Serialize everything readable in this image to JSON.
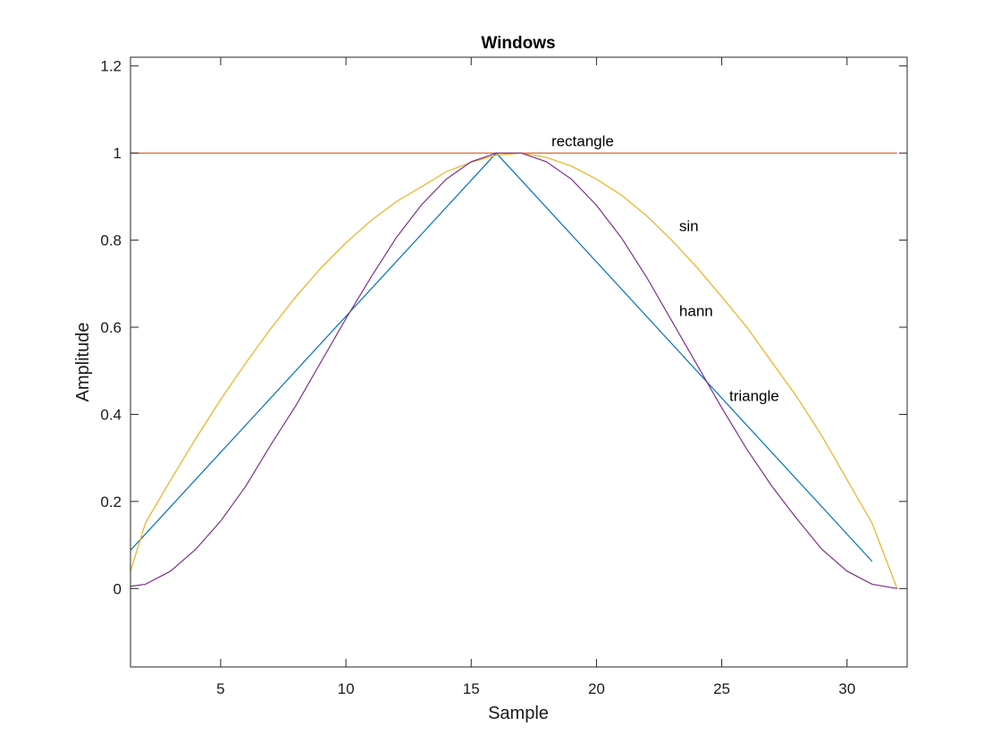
{
  "chart_data": {
    "type": "line",
    "title": "Windows",
    "xlabel": "Sample",
    "ylabel": "Amplitude",
    "xlim": [
      1.4,
      32.4
    ],
    "ylim": [
      -0.18,
      1.22
    ],
    "xticks": [
      5,
      10,
      15,
      20,
      25,
      30
    ],
    "yticks": [
      0,
      0.2,
      0.4,
      0.6,
      0.8,
      1,
      1.2
    ],
    "xtick_labels": [
      "5",
      "10",
      "15",
      "20",
      "25",
      "30"
    ],
    "ytick_labels": [
      "0",
      "0.2",
      "0.4",
      "0.6",
      "0.8",
      "1",
      "1.2"
    ],
    "grid": false,
    "box": true,
    "series": [
      {
        "name": "triangle",
        "color": "#0072BD",
        "x": [
          1.4,
          16,
          31
        ],
        "y": [
          0.088,
          1.0,
          0.0625
        ]
      },
      {
        "name": "rectangle",
        "color": "#D95319",
        "x": [
          1.4,
          32
        ],
        "y": [
          1.0,
          1.0
        ]
      },
      {
        "name": "sin",
        "color": "#EDB120",
        "x": [
          1.4,
          2,
          3,
          4,
          5,
          6,
          7,
          8,
          9,
          10,
          11,
          12,
          13,
          14,
          15,
          16,
          17,
          18,
          19,
          20,
          21,
          22,
          23,
          24,
          25,
          26,
          27,
          28,
          29,
          30,
          31,
          32
        ],
        "y": [
          0.04,
          0.151,
          0.249,
          0.344,
          0.434,
          0.518,
          0.597,
          0.67,
          0.736,
          0.794,
          0.845,
          0.888,
          0.922,
          0.957,
          0.979,
          0.995,
          1.0,
          0.99,
          0.97,
          0.94,
          0.903,
          0.856,
          0.8,
          0.738,
          0.67,
          0.6,
          0.52,
          0.44,
          0.35,
          0.25,
          0.15,
          0.0
        ]
      },
      {
        "name": "hann",
        "color": "#7E2F8E",
        "x": [
          1.4,
          2,
          3,
          4,
          5,
          6,
          7,
          8,
          9,
          10,
          11,
          12,
          13,
          14,
          15,
          16,
          17,
          18,
          19,
          20,
          21,
          22,
          23,
          24,
          25,
          26,
          27,
          28,
          29,
          30,
          31,
          32
        ],
        "y": [
          0.005,
          0.01,
          0.04,
          0.09,
          0.155,
          0.235,
          0.33,
          0.42,
          0.52,
          0.62,
          0.715,
          0.805,
          0.88,
          0.94,
          0.98,
          1.0,
          1.0,
          0.98,
          0.94,
          0.88,
          0.805,
          0.715,
          0.615,
          0.515,
          0.415,
          0.32,
          0.235,
          0.16,
          0.09,
          0.04,
          0.01,
          0.0
        ]
      }
    ],
    "annotations": [
      {
        "text": "rectangle",
        "x": 18.2,
        "y": 1.025
      },
      {
        "text": "sin",
        "x": 23.3,
        "y": 0.83
      },
      {
        "text": "hann",
        "x": 23.3,
        "y": 0.635
      },
      {
        "text": "triangle",
        "x": 25.3,
        "y": 0.44
      }
    ]
  }
}
